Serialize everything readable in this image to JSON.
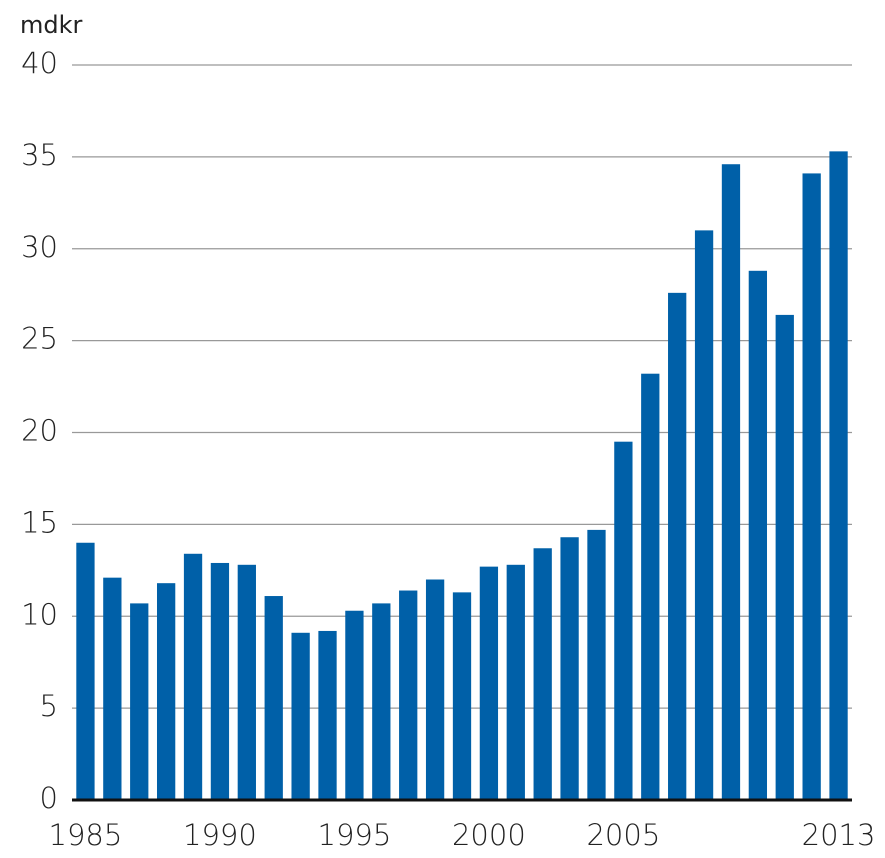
{
  "chart_data": {
    "type": "bar",
    "y_axis_label": "mdkr",
    "categories": [
      "1985",
      null,
      null,
      null,
      null,
      "1990",
      null,
      null,
      null,
      null,
      "1995",
      null,
      null,
      null,
      null,
      "2000",
      null,
      null,
      null,
      null,
      "2005",
      null,
      null,
      null,
      null,
      null,
      null,
      null,
      "2013"
    ],
    "values": [
      14.0,
      12.1,
      10.7,
      11.8,
      13.4,
      12.9,
      12.8,
      11.1,
      9.1,
      9.2,
      10.3,
      10.7,
      11.4,
      12.0,
      11.3,
      12.7,
      12.8,
      13.7,
      14.3,
      14.7,
      19.5,
      23.2,
      27.6,
      31.0,
      34.6,
      28.8,
      26.4,
      34.1,
      35.3
    ],
    "color": "#0060a8",
    "ylim": [
      0,
      40
    ],
    "yticks": [
      0,
      5,
      10,
      15,
      20,
      25,
      30,
      35,
      40
    ],
    "grid": true
  }
}
